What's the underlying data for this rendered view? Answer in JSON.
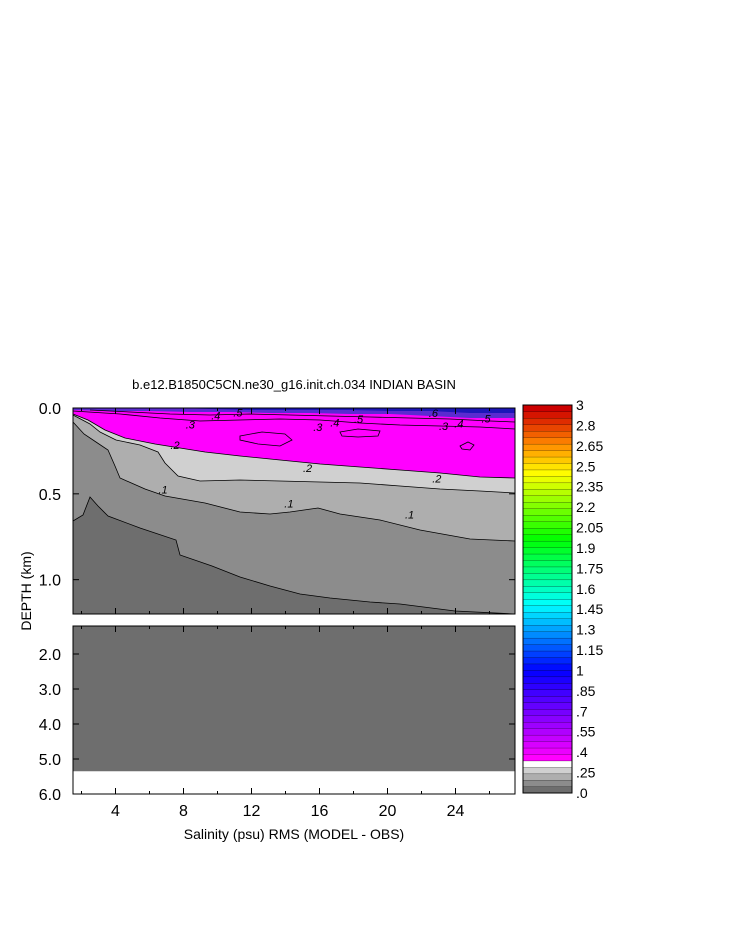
{
  "chart_data": {
    "type": "contour",
    "title": "b.e12.B1850C5CN.ne30_g16.init.ch.034 INDIAN BASIN",
    "xlabel": "Salinity (psu) RMS (MODEL - OBS)",
    "ylabel": "DEPTH (km)",
    "xlim": [
      1.5,
      27.5
    ],
    "x_ticks": [
      "4",
      "8",
      "12",
      "16",
      "20",
      "24"
    ],
    "x_tick_values": [
      4,
      8,
      12,
      16,
      20,
      24
    ],
    "upper_panel": {
      "ylim": [
        0.0,
        1.2
      ],
      "y_ticks": [
        "0.0",
        "0.5",
        "1.0"
      ],
      "y_tick_values": [
        0.0,
        0.5,
        1.0
      ]
    },
    "lower_panel": {
      "ylim": [
        1.2,
        6.0
      ],
      "y_ticks": [
        "2.0",
        "3.0",
        "4.0",
        "5.0",
        "6.0"
      ],
      "y_tick_values": [
        2.0,
        3.0,
        4.0,
        5.0,
        6.0
      ],
      "bottom_depth": 5.35
    },
    "contour_labels": [
      {
        "text": ".3",
        "x": 8.4,
        "y": 0.095
      },
      {
        "text": ".4",
        "x": 9.9,
        "y": 0.045
      },
      {
        "text": ".5",
        "x": 11.2,
        "y": 0.025
      },
      {
        "text": ".3",
        "x": 15.9,
        "y": 0.11
      },
      {
        "text": ".4",
        "x": 16.9,
        "y": 0.085
      },
      {
        "text": ".5",
        "x": 18.3,
        "y": 0.065
      },
      {
        "text": ".6",
        "x": 22.7,
        "y": 0.03
      },
      {
        "text": ".3",
        "x": 23.3,
        "y": 0.105
      },
      {
        "text": ".4",
        "x": 24.2,
        "y": 0.09
      },
      {
        "text": ".5",
        "x": 25.8,
        "y": 0.06
      },
      {
        "text": ".2",
        "x": 7.5,
        "y": 0.215
      },
      {
        "text": ".2",
        "x": 15.3,
        "y": 0.35
      },
      {
        "text": ".2",
        "x": 22.9,
        "y": 0.41
      },
      {
        "text": ".1",
        "x": 6.8,
        "y": 0.475
      },
      {
        "text": ".1",
        "x": 14.2,
        "y": 0.555
      },
      {
        "text": ".1",
        "x": 21.3,
        "y": 0.62
      }
    ],
    "colorbar": {
      "labels": [
        "3",
        "2.8",
        "2.65",
        "2.5",
        "2.35",
        "2.2",
        "2.05",
        "1.9",
        "1.75",
        "1.6",
        "1.45",
        "1.3",
        "1.15",
        "1",
        ".85",
        ".7",
        ".55",
        ".4",
        ".25",
        ".0"
      ],
      "label_levels": [
        3.0,
        2.8,
        2.65,
        2.5,
        2.35,
        2.2,
        2.05,
        1.9,
        1.75,
        1.6,
        1.45,
        1.3,
        1.15,
        1.0,
        0.85,
        0.7,
        0.55,
        0.4,
        0.25,
        0.0
      ]
    },
    "colors": {
      "level_0": "#6e6e6e",
      "level_1": "#8c8c8c",
      "level_2": "#aeaeae",
      "level_3": "#d0d0d0",
      "magenta": "#ff00ff",
      "background": "#ffffff"
    }
  }
}
